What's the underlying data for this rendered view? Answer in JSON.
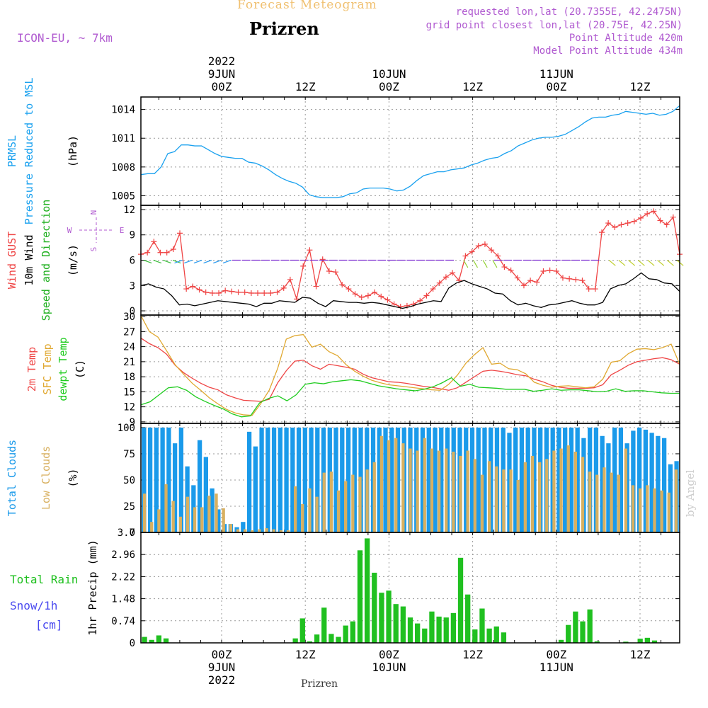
{
  "header": {
    "app_title": "Forecast Meteogram",
    "location": "Prizren",
    "model": "ICON-EU, ~ 7km",
    "requested": "requested lon,lat (20.7355E, 42.2475N)",
    "grid_point": "grid point closest lon,lat (20.75E, 42.25N)",
    "point_altitude": "Point Altitude 420m",
    "model_altitude": "Model Point Altitude 434m",
    "footer_location": "Prizren",
    "credit": "by Angel"
  },
  "colors": {
    "pressure": "#1aa1ef",
    "wind_gust": "#ef4545",
    "wind": "#000000",
    "wind_dir": "#20b020",
    "temp": "#ef4545",
    "sfc_temp": "#e0a830",
    "dewpt": "#20cc20",
    "total_clouds": "#1a9aea",
    "low_clouds": "#d8b060",
    "rain": "#20c020",
    "snow": "#4a4aef",
    "header_purple": "#b05ad0",
    "title_orange": "#f0c070"
  },
  "time_axis": {
    "top_labels": [
      {
        "t": 0,
        "lines": [
          "2022",
          "9JUN",
          "00Z"
        ]
      },
      {
        "t": 12,
        "lines": [
          "12Z"
        ]
      },
      {
        "t": 24,
        "lines": [
          "10JUN",
          "00Z"
        ]
      },
      {
        "t": 36,
        "lines": [
          "12Z"
        ]
      },
      {
        "t": 48,
        "lines": [
          "11JUN",
          "00Z"
        ]
      },
      {
        "t": 60,
        "lines": [
          "12Z"
        ]
      }
    ],
    "bottom_labels": [
      {
        "t": 0,
        "lines": [
          "00Z",
          "9JUN",
          "2022"
        ]
      },
      {
        "t": 12,
        "lines": [
          "12Z"
        ]
      },
      {
        "t": 24,
        "lines": [
          "00Z",
          "10JUN"
        ]
      },
      {
        "t": 36,
        "lines": [
          "12Z"
        ]
      },
      {
        "t": 48,
        "lines": [
          "00Z",
          "11JUN"
        ]
      },
      {
        "t": 60,
        "lines": [
          "12Z"
        ]
      }
    ]
  },
  "chart_data": [
    {
      "type": "line",
      "panel": "pressure",
      "ylabel_lines": [
        "PRMSL",
        "Pressure Reduced to MSL"
      ],
      "unit": "(hPa)",
      "ylim": [
        1004,
        1015.3
      ],
      "yticks": [
        1005,
        1008,
        1011,
        1014
      ],
      "grid": true,
      "series": [
        {
          "name": "PRMSL",
          "values": [
            1007.2,
            1007.3,
            1007.3,
            1008,
            1009.4,
            1009.6,
            1010.3,
            1010.3,
            1010.2,
            1010.2,
            1009.8,
            1009.4,
            1009.1,
            1009,
            1008.9,
            1008.9,
            1008.5,
            1008.4,
            1008.1,
            1007.7,
            1007.2,
            1006.8,
            1006.5,
            1006.3,
            1005.9,
            1005.1,
            1004.9,
            1004.8,
            1004.8,
            1004.8,
            1004.9,
            1005.2,
            1005.3,
            1005.7,
            1005.8,
            1005.8,
            1005.8,
            1005.7,
            1005.5,
            1005.6,
            1006,
            1006.6,
            1007.1,
            1007.3,
            1007.5,
            1007.5,
            1007.7,
            1007.8,
            1007.9,
            1008.2,
            1008.4,
            1008.7,
            1008.9,
            1009,
            1009.4,
            1009.7,
            1010.2,
            1010.5,
            1010.8,
            1011,
            1011.1,
            1011.1,
            1011.2,
            1011.4,
            1011.8,
            1012.2,
            1012.7,
            1013.1,
            1013.2,
            1013.2,
            1013.4,
            1013.5,
            1013.8,
            1013.7,
            1013.6,
            1013.5,
            1013.6,
            1013.4,
            1013.5,
            1013.8,
            1014.4
          ]
        }
      ]
    },
    {
      "type": "line",
      "panel": "wind",
      "ylabel_lines": [
        "Wind GUST",
        "10m Wind",
        "Speed and Direction"
      ],
      "unit": "(m/s)",
      "compass": [
        "N",
        "S",
        "W",
        "E"
      ],
      "ylim": [
        -0.5,
        12.5
      ],
      "yticks": [
        0,
        3,
        6,
        9,
        12
      ],
      "grid": true,
      "series": [
        {
          "name": "Wind GUST",
          "values": [
            6.7,
            6.9,
            8.2,
            6.9,
            6.9,
            7.3,
            9.2,
            2.6,
            2.9,
            2.5,
            2.2,
            2.1,
            2.1,
            2.4,
            2.3,
            2.2,
            2.2,
            2.1,
            2.1,
            2.1,
            2.1,
            2.2,
            2.7,
            3.7,
            1.4,
            5.3,
            7.2,
            2.9,
            6.1,
            4.7,
            4.6,
            3.1,
            2.6,
            2.0,
            1.6,
            1.8,
            2.2,
            1.7,
            1.3,
            0.8,
            0.5,
            0.6,
            0.8,
            1.2,
            1.8,
            2.6,
            3.3,
            4.0,
            4.5,
            3.6,
            6.5,
            7.0,
            7.7,
            7.9,
            7.2,
            6.5,
            5.2,
            4.8,
            3.9,
            3.0,
            3.6,
            3.4,
            4.7,
            4.8,
            4.7,
            3.9,
            3.8,
            3.7,
            3.6,
            2.6,
            2.6,
            9.3,
            10.4,
            9.9,
            10.2,
            10.4,
            10.6,
            11.0,
            11.5,
            11.8,
            10.7,
            10.2,
            11.1,
            6.7
          ]
        },
        {
          "name": "10m Wind",
          "values": [
            3.0,
            3.2,
            2.8,
            2.6,
            1.8,
            0.7,
            0.8,
            0.6,
            0.8,
            1.0,
            1.2,
            1.1,
            1.0,
            0.9,
            0.8,
            0.5,
            0.9,
            0.9,
            1.2,
            1.1,
            1.0,
            1.6,
            1.5,
            0.9,
            0.5,
            1.2,
            1.1,
            1.0,
            1.0,
            0.9,
            1.0,
            0.9,
            0.7,
            0.5,
            0.3,
            0.5,
            0.8,
            1.0,
            1.2,
            1.1,
            2.7,
            3.3,
            3.6,
            3.2,
            2.9,
            2.6,
            2.1,
            2.0,
            1.2,
            0.7,
            0.9,
            0.6,
            0.4,
            0.7,
            0.8,
            1.0,
            1.2,
            0.9,
            0.7,
            0.7,
            1.0,
            2.6,
            3.0,
            3.2,
            3.8,
            4.5,
            3.8,
            3.7,
            3.3,
            3.2,
            2.3
          ]
        }
      ]
    },
    {
      "type": "line",
      "panel": "temperature",
      "ylabel_lines": [
        "2m Temp",
        "SFC Temp",
        "dewpt Temp"
      ],
      "unit": "(C)",
      "ylim": [
        8.7,
        30.3
      ],
      "yticks": [
        9,
        12,
        15,
        18,
        21,
        24,
        27,
        30
      ],
      "grid": true,
      "series": [
        {
          "name": "2m Temp",
          "values": [
            25.7,
            24.6,
            23.8,
            22.5,
            20.3,
            18.8,
            17.7,
            16.7,
            15.9,
            15.4,
            14.4,
            13.8,
            13.3,
            13.2,
            13.1,
            13.5,
            16.8,
            19.2,
            21.1,
            21.3,
            20.2,
            19.5,
            20.5,
            20.2,
            19.9,
            19.5,
            18.5,
            17.8,
            17.4,
            17.0,
            16.9,
            16.7,
            16.4,
            16.1,
            15.9,
            15.6,
            15.3,
            15.8,
            16.9,
            18.0,
            19.1,
            19.3,
            19.1,
            18.8,
            18.4,
            18.2,
            17.5,
            17.0,
            16.3,
            15.9,
            15.7,
            15.7,
            15.7,
            15.8,
            16.4,
            18.4,
            19.3,
            20.3,
            21.0,
            21.3,
            21.6,
            21.8,
            21.4,
            20.5
          ]
        },
        {
          "name": "SFC Temp",
          "values": [
            30.2,
            27.0,
            25.9,
            23.2,
            20.4,
            18.5,
            16.7,
            15.3,
            13.8,
            12.6,
            11.5,
            10.8,
            10.4,
            10.3,
            12.6,
            15.3,
            19.7,
            25.5,
            26.2,
            26.4,
            23.9,
            24.5,
            23.0,
            22.2,
            20.4,
            19.1,
            18.1,
            17.3,
            16.8,
            16.4,
            16.2,
            16.0,
            15.8,
            15.6,
            15.4,
            15.3,
            16.5,
            18.3,
            20.7,
            22.4,
            23.8,
            20.5,
            20.7,
            19.6,
            19.4,
            18.6,
            16.9,
            16.3,
            15.9,
            16.1,
            16.2,
            16.0,
            15.8,
            16.0,
            17.5,
            20.9,
            21.2,
            22.6,
            23.5,
            23.6,
            23.4,
            23.8,
            24.5,
            20.5
          ]
        },
        {
          "name": "dewpt Temp",
          "values": [
            12.4,
            13.0,
            14.4,
            15.8,
            16.0,
            15.3,
            14.0,
            13.1,
            12.3,
            11.6,
            10.6,
            10.0,
            10.2,
            12.8,
            13.7,
            14.2,
            13.2,
            14.4,
            16.5,
            16.8,
            16.6,
            17.0,
            17.2,
            17.4,
            17.2,
            16.7,
            16.2,
            15.9,
            15.6,
            15.4,
            15.2,
            15.5,
            16.0,
            16.8,
            17.8,
            16.1,
            16.5,
            15.9,
            15.8,
            15.7,
            15.5,
            15.5,
            15.5,
            15.1,
            15.3,
            15.6,
            15.3,
            15.4,
            15.4,
            15.2,
            15.0,
            15.1,
            15.6,
            15.1,
            15.2,
            15.2,
            15.0,
            14.8,
            14.7,
            14.7
          ]
        }
      ]
    },
    {
      "type": "bar",
      "panel": "clouds",
      "ylabel_lines": [
        "Total Clouds",
        "Low Clouds"
      ],
      "unit": "(%)",
      "ylim": [
        0,
        104
      ],
      "yticks": [
        0,
        25,
        50,
        75,
        100
      ],
      "grid": true,
      "series": [
        {
          "name": "Total Clouds",
          "values": [
            100,
            100,
            100,
            100,
            100,
            85,
            100,
            63,
            45,
            88,
            72,
            42,
            22,
            8,
            8,
            5,
            10,
            96,
            82,
            100,
            100,
            100,
            100,
            100,
            100,
            100,
            100,
            100,
            100,
            100,
            100,
            100,
            100,
            100,
            100,
            100,
            100,
            100,
            100,
            100,
            100,
            100,
            100,
            100,
            100,
            100,
            100,
            100,
            100,
            100,
            100,
            100,
            100,
            100,
            100,
            100,
            100,
            100,
            100,
            95,
            100,
            100,
            100,
            100,
            100,
            100,
            100,
            100,
            100,
            100,
            100,
            90,
            100,
            100,
            92,
            85,
            100,
            100,
            85,
            97,
            100,
            98,
            95,
            92,
            90,
            65,
            68
          ]
        },
        {
          "name": "Low Clouds",
          "values": [
            37,
            10,
            22,
            46,
            30,
            15,
            34,
            24,
            24,
            35,
            37,
            23,
            8,
            3,
            3,
            2,
            3,
            4,
            3,
            2,
            2,
            44,
            27,
            42,
            34,
            57,
            58,
            40,
            49,
            55,
            53,
            60,
            67,
            92,
            88,
            90,
            85,
            80,
            78,
            90,
            80,
            78,
            80,
            77,
            73,
            78,
            70,
            55,
            68,
            63,
            60,
            60,
            50,
            67,
            73,
            67,
            70,
            78,
            80,
            83,
            77,
            72,
            58,
            55,
            62,
            57,
            55,
            80,
            45,
            42,
            45,
            42,
            40,
            38,
            60
          ]
        }
      ]
    },
    {
      "type": "bar",
      "panel": "precipitation",
      "ylabel_lines": [
        "1hr Precip (mm)"
      ],
      "side_labels": [
        "Total  Rain",
        "Snow/1h",
        "[cm]"
      ],
      "ylim": [
        0,
        3.7
      ],
      "yticks": [
        0,
        0.74,
        1.48,
        2.22,
        2.96,
        3.7
      ],
      "grid": true,
      "series": [
        {
          "name": "Total Rain",
          "values": [
            0.2,
            0.1,
            0.25,
            0.15,
            0,
            0,
            0,
            0,
            0,
            0,
            0,
            0,
            0,
            0,
            0,
            0,
            0,
            0,
            0,
            0,
            0,
            0.15,
            0.82,
            0.05,
            0.28,
            1.18,
            0.3,
            0.2,
            0.58,
            0.72,
            3.1,
            3.5,
            2.35,
            1.68,
            1.75,
            1.3,
            1.22,
            0.85,
            0.65,
            0.48,
            1.05,
            0.88,
            0.85,
            1.0,
            2.85,
            1.62,
            0.45,
            1.15,
            0.48,
            0.55,
            0.35,
            0,
            0,
            0,
            0,
            0,
            0,
            0,
            0.1,
            0.6,
            1.05,
            0.72,
            1.12,
            0.05,
            0,
            0,
            0,
            0.04,
            0,
            0.14,
            0.17,
            0.08,
            0,
            0,
            0
          ]
        }
      ]
    }
  ]
}
